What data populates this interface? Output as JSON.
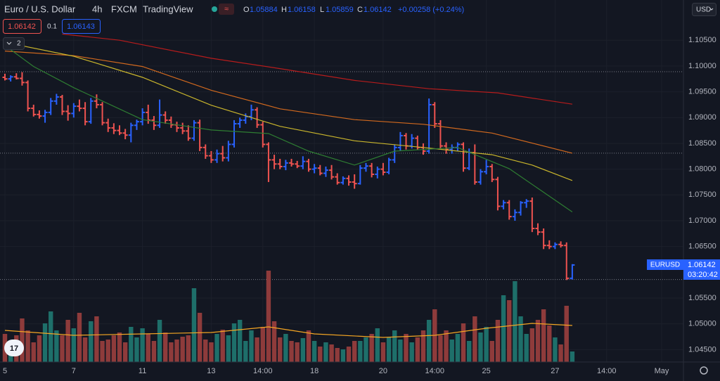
{
  "header": {
    "symbol": "Euro / U.S. Dollar",
    "interval": "4h",
    "source": "FXCM",
    "brand": "TradingView",
    "o_label": "O",
    "open": "1.05884",
    "h_label": "H",
    "high": "1.06158",
    "l_label": "L",
    "low": "1.05859",
    "c_label": "C",
    "close": "1.06142",
    "change": "+0.00258 (+0.24%)"
  },
  "controls": {
    "sell": "1.06142",
    "spread": "0.1",
    "buy": "1.06143",
    "indicators": "2",
    "currency": "USD"
  },
  "price_label": {
    "symbol": "EURUSD",
    "price": "1.06142",
    "countdown": "03:20:42"
  },
  "chart_data": [
    {
      "type": "ohlc",
      "up_color": "#2962ff",
      "down_color": "#ef5350",
      "grid": true,
      "xlim": [
        -0.86,
        118.4
      ],
      "xticks": [
        {
          "value": 0,
          "label": "5"
        },
        {
          "value": 12,
          "label": "7"
        },
        {
          "value": 24,
          "label": "11"
        },
        {
          "value": 36,
          "label": "13"
        },
        {
          "value": 45,
          "label": "14:00"
        },
        {
          "value": 54,
          "label": "18"
        },
        {
          "value": 66,
          "label": "20"
        },
        {
          "value": 75,
          "label": "14:00"
        },
        {
          "value": 84,
          "label": "25"
        },
        {
          "value": 96,
          "label": "27"
        },
        {
          "value": 105,
          "label": "14:00"
        },
        {
          "value": 114.6,
          "label": "May"
        }
      ],
      "ylim": [
        1.0426,
        1.1128
      ],
      "yticks": [
        {
          "value": 1.045,
          "label": "1.04500"
        },
        {
          "value": 1.05,
          "label": "1.05000"
        },
        {
          "value": 1.055,
          "label": "1.05500"
        },
        {
          "value": 1.065,
          "label": "1.06500"
        },
        {
          "value": 1.07,
          "label": "1.07000"
        },
        {
          "value": 1.075,
          "label": "1.07500"
        },
        {
          "value": 1.08,
          "label": "1.08000"
        },
        {
          "value": 1.085,
          "label": "1.08500"
        },
        {
          "value": 1.09,
          "label": "1.09000"
        },
        {
          "value": 1.095,
          "label": "1.09500"
        },
        {
          "value": 1.1,
          "label": "1.10000"
        },
        {
          "value": 1.105,
          "label": "1.10500"
        }
      ],
      "hlines": [
        1.0989,
        1.0831,
        1.0586
      ],
      "ohlc": [
        [
          1.0978,
          1.0985,
          1.0972,
          1.0975
        ],
        [
          1.0975,
          1.0982,
          1.097,
          1.0979
        ],
        [
          1.0979,
          1.0986,
          1.0974,
          1.0976
        ],
        [
          1.0976,
          1.0988,
          1.0962,
          1.0968
        ],
        [
          1.0968,
          1.0972,
          1.0912,
          1.0918
        ],
        [
          1.0918,
          1.0925,
          1.0902,
          1.0906
        ],
        [
          1.0906,
          1.0914,
          1.0898,
          1.0903
        ],
        [
          1.0903,
          1.0915,
          1.089,
          1.091
        ],
        [
          1.091,
          1.0938,
          1.0905,
          1.0932
        ],
        [
          1.0932,
          1.0946,
          1.0925,
          1.094
        ],
        [
          1.094,
          1.0944,
          1.0905,
          1.0912
        ],
        [
          1.0912,
          1.0924,
          1.0894,
          1.0908
        ],
        [
          1.0908,
          1.0928,
          1.09,
          1.0922
        ],
        [
          1.0922,
          1.0935,
          1.0912,
          1.0918
        ],
        [
          1.0918,
          1.093,
          1.0885,
          1.0892
        ],
        [
          1.0892,
          1.0938,
          1.0888,
          1.0932
        ],
        [
          1.0932,
          1.0945,
          1.0918,
          1.0925
        ],
        [
          1.0925,
          1.093,
          1.0885,
          1.089
        ],
        [
          1.089,
          1.0898,
          1.0872,
          1.088
        ],
        [
          1.088,
          1.0889,
          1.0868,
          1.0875
        ],
        [
          1.0875,
          1.0885,
          1.0866,
          1.087
        ],
        [
          1.087,
          1.0878,
          1.0858,
          1.0866
        ],
        [
          1.0866,
          1.089,
          1.0852,
          1.0885
        ],
        [
          1.0885,
          1.0896,
          1.0876,
          1.0892
        ],
        [
          1.0892,
          1.0918,
          1.0885,
          1.091
        ],
        [
          1.091,
          1.0925,
          1.0888,
          1.0895
        ],
        [
          1.0895,
          1.0903,
          1.0876,
          1.0885
        ],
        [
          1.0885,
          1.0935,
          1.088,
          1.0905
        ],
        [
          1.0905,
          1.0912,
          1.0888,
          1.0895
        ],
        [
          1.0895,
          1.0902,
          1.088,
          1.0886
        ],
        [
          1.0886,
          1.0892,
          1.0872,
          1.088
        ],
        [
          1.088,
          1.089,
          1.0868,
          1.0874
        ],
        [
          1.0874,
          1.0885,
          1.0855,
          1.086
        ],
        [
          1.086,
          1.0895,
          1.0855,
          1.089
        ],
        [
          1.089,
          1.0896,
          1.0835,
          1.0842
        ],
        [
          1.0842,
          1.0848,
          1.082,
          1.0826
        ],
        [
          1.0826,
          1.0835,
          1.0812,
          1.0818
        ],
        [
          1.0818,
          1.0838,
          1.0812,
          1.083
        ],
        [
          1.083,
          1.0845,
          1.0815,
          1.0822
        ],
        [
          1.0822,
          1.0855,
          1.0815,
          1.0848
        ],
        [
          1.0848,
          1.0895,
          1.0842,
          1.0888
        ],
        [
          1.0888,
          1.09,
          1.088,
          1.0895
        ],
        [
          1.0895,
          1.0908,
          1.0888,
          1.0902
        ],
        [
          1.0902,
          1.0925,
          1.0895,
          1.0915
        ],
        [
          1.0915,
          1.092,
          1.088,
          1.0886
        ],
        [
          1.0886,
          1.0892,
          1.0842,
          1.0848
        ],
        [
          1.0848,
          1.0852,
          1.0775,
          1.0818
        ],
        [
          1.0818,
          1.0828,
          1.08,
          1.081
        ],
        [
          1.081,
          1.082,
          1.08,
          1.0805
        ],
        [
          1.0805,
          1.0818,
          1.0798,
          1.0812
        ],
        [
          1.0812,
          1.082,
          1.0805,
          1.081
        ],
        [
          1.081,
          1.0816,
          1.0802,
          1.0806
        ],
        [
          1.0806,
          1.0825,
          1.08,
          1.0815
        ],
        [
          1.0815,
          1.082,
          1.0795,
          1.08
        ],
        [
          1.08,
          1.081,
          1.0792,
          1.0802
        ],
        [
          1.0802,
          1.0808,
          1.0788,
          1.0792
        ],
        [
          1.0792,
          1.0805,
          1.0785,
          1.0798
        ],
        [
          1.0798,
          1.0808,
          1.078,
          1.0785
        ],
        [
          1.0785,
          1.0792,
          1.077,
          1.0774
        ],
        [
          1.0774,
          1.0786,
          1.077,
          1.0782
        ],
        [
          1.0782,
          1.0788,
          1.0768,
          1.0775
        ],
        [
          1.0775,
          1.079,
          1.0762,
          1.0772
        ],
        [
          1.0772,
          1.0808,
          1.077,
          1.0802
        ],
        [
          1.0802,
          1.0812,
          1.0795,
          1.0806
        ],
        [
          1.0806,
          1.0812,
          1.0784,
          1.079
        ],
        [
          1.079,
          1.0805,
          1.0782,
          1.08
        ],
        [
          1.08,
          1.0812,
          1.0788,
          1.0794
        ],
        [
          1.0794,
          1.0822,
          1.079,
          1.0818
        ],
        [
          1.0818,
          1.0848,
          1.0812,
          1.0842
        ],
        [
          1.0842,
          1.0872,
          1.0835,
          1.0865
        ],
        [
          1.0865,
          1.087,
          1.0838,
          1.0845
        ],
        [
          1.0845,
          1.0868,
          1.084,
          1.086
        ],
        [
          1.086,
          1.0865,
          1.0838,
          1.0842
        ],
        [
          1.0842,
          1.085,
          1.0828,
          1.0835
        ],
        [
          1.0835,
          1.0937,
          1.083,
          1.0925
        ],
        [
          1.0925,
          1.093,
          1.088,
          1.0888
        ],
        [
          1.0888,
          1.0895,
          1.084,
          1.0845
        ],
        [
          1.0845,
          1.0852,
          1.083,
          1.0838
        ],
        [
          1.0838,
          1.0848,
          1.083,
          1.0842
        ],
        [
          1.0842,
          1.0852,
          1.0835,
          1.0848
        ],
        [
          1.0848,
          1.0852,
          1.0795,
          1.0802
        ],
        [
          1.0802,
          1.084,
          1.0798,
          1.0832
        ],
        [
          1.0832,
          1.0848,
          1.077,
          1.0775
        ],
        [
          1.0775,
          1.08,
          1.077,
          1.0795
        ],
        [
          1.0795,
          1.0818,
          1.079,
          1.0805
        ],
        [
          1.0805,
          1.081,
          1.0775,
          1.078
        ],
        [
          1.078,
          1.0785,
          1.072,
          1.0728
        ],
        [
          1.0728,
          1.074,
          1.0722,
          1.0735
        ],
        [
          1.0735,
          1.074,
          1.0702,
          1.0708
        ],
        [
          1.0708,
          1.0722,
          1.07,
          1.0716
        ],
        [
          1.0716,
          1.0738,
          1.071,
          1.0735
        ],
        [
          1.0735,
          1.0742,
          1.0725,
          1.0738
        ],
        [
          1.0738,
          1.0745,
          1.0678,
          1.0685
        ],
        [
          1.0685,
          1.0695,
          1.0672,
          1.0678
        ],
        [
          1.0678,
          1.0685,
          1.0645,
          1.0652
        ],
        [
          1.0652,
          1.0662,
          1.0645,
          1.065
        ],
        [
          1.065,
          1.0658,
          1.0645,
          1.0654
        ],
        [
          1.0654,
          1.066,
          1.0648,
          1.0652
        ],
        [
          1.0652,
          1.0658,
          1.0585,
          1.05884
        ],
        [
          1.05884,
          1.06158,
          1.05859,
          1.06142
        ]
      ],
      "moving_averages": [
        {
          "color": "#b71c1c",
          "x": [
            10,
            20,
            36,
            48,
            61,
            74,
            86,
            99
          ],
          "values": [
            1.1062,
            1.105,
            1.1015,
            1.0995,
            1.0972,
            1.0956,
            1.0948,
            1.0926
          ]
        },
        {
          "color": "#d2691e",
          "x": [
            0,
            12,
            24,
            36,
            48,
            61,
            73,
            85,
            99
          ],
          "values": [
            1.1029,
            1.102,
            1.0999,
            1.0953,
            1.0917,
            1.0896,
            1.0887,
            1.087,
            1.0831
          ]
        },
        {
          "color": "#c9b52c",
          "x": [
            0,
            12,
            24,
            36,
            48,
            61,
            73,
            85,
            92,
            99
          ],
          "values": [
            1.1046,
            1.1019,
            1.0978,
            1.0924,
            1.0883,
            1.0855,
            1.0842,
            1.0828,
            1.0808,
            1.0778
          ]
        },
        {
          "color": "#2e7d32",
          "x": [
            0,
            5,
            12,
            24,
            36,
            46,
            53,
            61,
            68,
            79,
            88,
            99
          ],
          "values": [
            1.104,
            1.0999,
            1.0958,
            1.0896,
            1.0876,
            1.0869,
            1.0835,
            1.0808,
            1.0835,
            1.0842,
            1.0801,
            1.0717
          ]
        }
      ]
    },
    {
      "type": "bar",
      "up_color": "#1e6f6a",
      "down_color": "#8e3b3b",
      "ylim": [
        0,
        400
      ],
      "values": [
        40,
        30,
        38,
        62,
        45,
        28,
        38,
        55,
        72,
        45,
        38,
        60,
        48,
        70,
        35,
        58,
        65,
        30,
        32,
        38,
        42,
        28,
        50,
        35,
        48,
        40,
        30,
        60,
        42,
        28,
        32,
        36,
        38,
        105,
        70,
        32,
        28,
        40,
        46,
        38,
        55,
        60,
        30,
        45,
        35,
        50,
        130,
        58,
        35,
        40,
        30,
        28,
        34,
        45,
        30,
        22,
        28,
        25,
        20,
        18,
        22,
        30,
        30,
        35,
        40,
        48,
        28,
        35,
        45,
        32,
        40,
        28,
        35,
        45,
        60,
        75,
        38,
        45,
        32,
        40,
        55,
        30,
        65,
        42,
        50,
        30,
        60,
        95,
        88,
        115,
        65,
        40,
        48,
        60,
        75,
        52,
        35,
        25,
        80,
        15
      ],
      "ma": {
        "color": "#f5a623",
        "x": [
          0,
          12,
          24,
          36,
          46,
          54,
          66,
          75,
          84,
          92,
          99
        ],
        "values": [
          45,
          38,
          40,
          42,
          50,
          40,
          35,
          38,
          48,
          55,
          52
        ]
      }
    }
  ]
}
